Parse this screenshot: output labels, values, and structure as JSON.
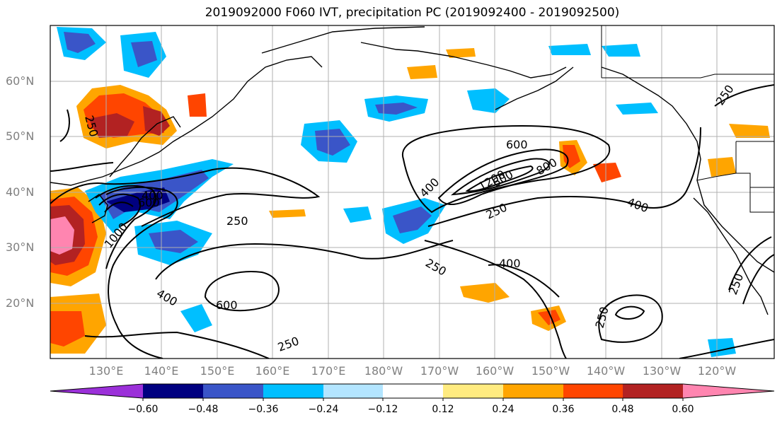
{
  "title": "2019092000 F060 IVT, precipitation PC (2019092400 - 2019092500)",
  "lat_labels": [
    "60°N",
    "50°N",
    "40°N",
    "30°N",
    "20°N"
  ],
  "lon_labels": [
    "130°E",
    "140°E",
    "150°E",
    "160°E",
    "170°E",
    "180°W",
    "170°W",
    "160°W",
    "150°W",
    "140°W",
    "130°W",
    "120°W"
  ],
  "colorbar": {
    "ticks": [
      "−0.60",
      "−0.48",
      "−0.36",
      "−0.24",
      "−0.12",
      "0.12",
      "0.24",
      "0.36",
      "0.48",
      "0.60"
    ],
    "colors": [
      "#9b30d9",
      "#000080",
      "#3a55c8",
      "#00bfff",
      "#b3e5ff",
      "#ffffff",
      "#ffeb80",
      "#ffa500",
      "#ff4500",
      "#b22222",
      "#ff85b0"
    ]
  },
  "contour_labels": [
    "250",
    "600",
    "400",
    "250",
    "1000",
    "600",
    "400",
    "250",
    "1200",
    "600",
    "800",
    "400",
    "250",
    "400",
    "250",
    "250",
    "400",
    "600",
    "250",
    "250"
  ]
}
